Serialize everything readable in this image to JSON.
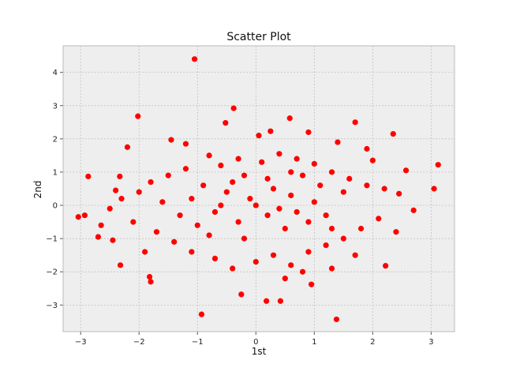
{
  "chart_data": {
    "type": "scatter",
    "title": "Scatter Plot",
    "xlabel": "1st",
    "ylabel": "2nd",
    "xlim": [
      -3.3,
      3.4
    ],
    "ylim": [
      -3.8,
      4.8
    ],
    "xticks": [
      -3,
      -2,
      -1,
      0,
      1,
      2,
      3
    ],
    "yticks": [
      -3,
      -2,
      -1,
      0,
      1,
      2,
      3,
      4
    ],
    "grid": true,
    "marker_color": "#ff0000",
    "background_color": "#eeeeee",
    "grid_color": "#bbbbbb",
    "series": [
      {
        "points": [
          [
            -1.05,
            4.4
          ],
          [
            -0.38,
            2.92
          ],
          [
            -2.02,
            2.68
          ],
          [
            0.58,
            2.62
          ],
          [
            1.7,
            2.5
          ],
          [
            2.35,
            2.15
          ],
          [
            -2.2,
            1.75
          ],
          [
            -1.45,
            1.97
          ],
          [
            -0.52,
            2.48
          ],
          [
            0.25,
            2.23
          ],
          [
            0.9,
            2.2
          ],
          [
            1.9,
            1.7
          ],
          [
            3.12,
            1.22
          ],
          [
            2.57,
            1.05
          ],
          [
            -2.87,
            0.87
          ],
          [
            -2.33,
            0.87
          ],
          [
            3.05,
            0.5
          ],
          [
            -3.04,
            -0.35
          ],
          [
            -2.93,
            -0.3
          ],
          [
            -2.65,
            -0.6
          ],
          [
            -2.7,
            -0.95
          ],
          [
            -2.45,
            -1.05
          ],
          [
            -2.32,
            -1.8
          ],
          [
            -1.82,
            -2.15
          ],
          [
            -1.8,
            -2.3
          ],
          [
            -0.93,
            -3.28
          ],
          [
            0.18,
            -2.88
          ],
          [
            0.42,
            -2.88
          ],
          [
            1.38,
            -3.43
          ],
          [
            2.22,
            -1.82
          ],
          [
            2.7,
            -0.15
          ],
          [
            0.95,
            -2.38
          ],
          [
            -0.25,
            -2.68
          ],
          [
            0.5,
            -2.2
          ],
          [
            -0.8,
            1.5
          ],
          [
            -0.6,
            1.2
          ],
          [
            -0.3,
            1.4
          ],
          [
            0.1,
            1.3
          ],
          [
            0.4,
            1.55
          ],
          [
            0.7,
            1.4
          ],
          [
            1.0,
            1.25
          ],
          [
            1.3,
            1.0
          ],
          [
            1.6,
            0.8
          ],
          [
            1.9,
            0.6
          ],
          [
            2.2,
            0.5
          ],
          [
            2.45,
            0.35
          ],
          [
            -1.2,
            1.1
          ],
          [
            -1.5,
            0.9
          ],
          [
            -1.8,
            0.7
          ],
          [
            -2.0,
            0.4
          ],
          [
            -2.3,
            0.2
          ],
          [
            -2.5,
            -0.1
          ],
          [
            -2.1,
            -0.5
          ],
          [
            -1.7,
            -0.8
          ],
          [
            -1.4,
            -1.1
          ],
          [
            -1.1,
            -1.4
          ],
          [
            -0.7,
            -1.6
          ],
          [
            -0.4,
            -1.9
          ],
          [
            0.0,
            -1.7
          ],
          [
            0.3,
            -1.5
          ],
          [
            0.6,
            -1.8
          ],
          [
            0.9,
            -1.4
          ],
          [
            1.2,
            -1.2
          ],
          [
            1.5,
            -1.0
          ],
          [
            1.8,
            -0.7
          ],
          [
            2.1,
            -0.4
          ],
          [
            2.4,
            -0.8
          ],
          [
            1.7,
            -1.5
          ],
          [
            1.3,
            -1.9
          ],
          [
            0.8,
            -2.0
          ],
          [
            -0.9,
            0.6
          ],
          [
            -0.5,
            0.4
          ],
          [
            -0.1,
            0.2
          ],
          [
            0.3,
            0.5
          ],
          [
            0.6,
            0.3
          ],
          [
            1.0,
            0.1
          ],
          [
            -0.7,
            -0.2
          ],
          [
            -0.3,
            -0.5
          ],
          [
            0.2,
            -0.3
          ],
          [
            0.5,
            -0.7
          ],
          [
            0.9,
            -0.5
          ],
          [
            1.2,
            -0.3
          ],
          [
            -1.0,
            -0.6
          ],
          [
            -1.3,
            -0.3
          ],
          [
            -1.6,
            0.1
          ],
          [
            -0.2,
            0.9
          ],
          [
            0.8,
            0.9
          ],
          [
            1.5,
            0.4
          ],
          [
            -2.4,
            0.45
          ],
          [
            -1.9,
            -1.4
          ],
          [
            2.0,
            1.35
          ],
          [
            -1.2,
            1.85
          ],
          [
            0.05,
            2.1
          ],
          [
            1.4,
            1.9
          ],
          [
            -0.6,
            0.0
          ],
          [
            0.0,
            0.0
          ],
          [
            0.4,
            -0.1
          ],
          [
            -0.4,
            0.7
          ],
          [
            0.7,
            -0.2
          ],
          [
            -0.8,
            -0.9
          ],
          [
            1.1,
            0.6
          ],
          [
            -1.1,
            0.2
          ],
          [
            0.2,
            0.8
          ],
          [
            -0.2,
            -1.0
          ],
          [
            0.6,
            1.0
          ],
          [
            1.3,
            -0.7
          ]
        ]
      }
    ]
  }
}
